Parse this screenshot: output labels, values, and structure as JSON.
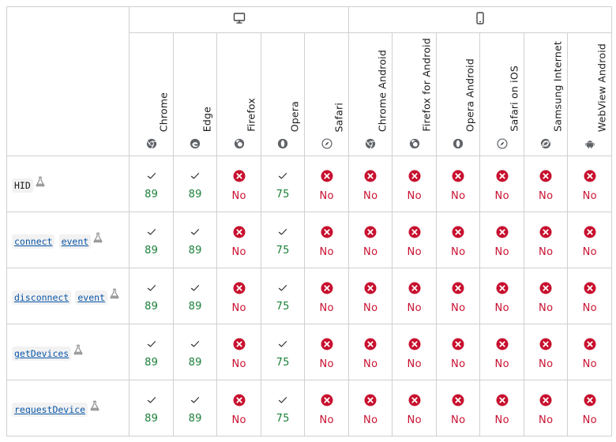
{
  "platforms": [
    {
      "name": "Desktop",
      "icon": "desktop-icon",
      "span": 5
    },
    {
      "name": "Mobile",
      "icon": "mobile-icon",
      "span": 6
    }
  ],
  "browsers": [
    {
      "name": "Chrome",
      "icon": "chrome-icon"
    },
    {
      "name": "Edge",
      "icon": "edge-icon"
    },
    {
      "name": "Firefox",
      "icon": "firefox-icon"
    },
    {
      "name": "Opera",
      "icon": "opera-icon"
    },
    {
      "name": "Safari",
      "icon": "safari-icon"
    },
    {
      "name": "Chrome Android",
      "icon": "chrome-icon"
    },
    {
      "name": "Firefox for Android",
      "icon": "firefox-icon"
    },
    {
      "name": "Opera Android",
      "icon": "opera-icon"
    },
    {
      "name": "Safari on iOS",
      "icon": "safari-icon"
    },
    {
      "name": "Samsung Internet",
      "icon": "samsung-internet-icon"
    },
    {
      "name": "WebView Android",
      "icon": "android-icon"
    }
  ],
  "features": [
    {
      "parts": [
        {
          "text": "HID",
          "link": false
        }
      ],
      "experimental": true,
      "support": [
        "89",
        "89",
        "No",
        "75",
        "No",
        "No",
        "No",
        "No",
        "No",
        "No",
        "No"
      ]
    },
    {
      "parts": [
        {
          "text": "connect",
          "link": true
        },
        {
          "text": "event",
          "link": true
        }
      ],
      "experimental": true,
      "support": [
        "89",
        "89",
        "No",
        "75",
        "No",
        "No",
        "No",
        "No",
        "No",
        "No",
        "No"
      ]
    },
    {
      "parts": [
        {
          "text": "disconnect",
          "link": true
        },
        {
          "text": "event",
          "link": true
        }
      ],
      "experimental": true,
      "support": [
        "89",
        "89",
        "No",
        "75",
        "No",
        "No",
        "No",
        "No",
        "No",
        "No",
        "No"
      ]
    },
    {
      "parts": [
        {
          "text": "getDevices",
          "link": true
        }
      ],
      "experimental": true,
      "support": [
        "89",
        "89",
        "No",
        "75",
        "No",
        "No",
        "No",
        "No",
        "No",
        "No",
        "No"
      ]
    },
    {
      "parts": [
        {
          "text": "requestDevice",
          "link": true
        }
      ],
      "experimental": true,
      "support": [
        "89",
        "89",
        "No",
        "75",
        "No",
        "No",
        "No",
        "No",
        "No",
        "No",
        "No"
      ]
    }
  ],
  "colors": {
    "yes": "#1a7f37",
    "no": "#c8102e",
    "border": "#d0d0d0",
    "link": "#0b57a8"
  }
}
